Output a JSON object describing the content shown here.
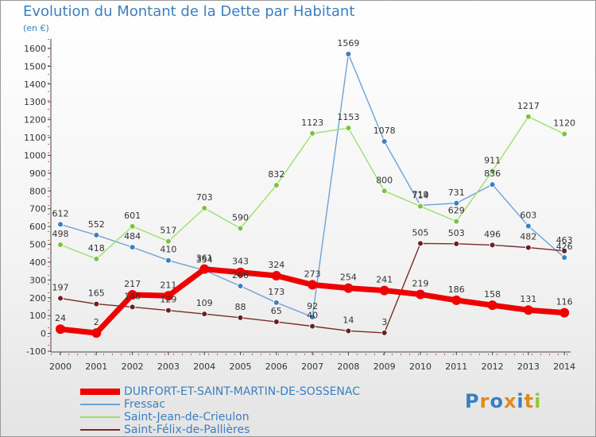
{
  "header": {
    "title": "Evolution du Montant de la Dette par Habitant",
    "unit": "(en €)"
  },
  "logo": {
    "text": "Proxiti",
    "letters": [
      "P",
      "r",
      "o",
      "x",
      "i",
      "t",
      "i"
    ],
    "colors": [
      "#3a7fc1",
      "#e08a1e",
      "#3a7fc1",
      "#e08a1e",
      "#3a7fc1",
      "#e08a1e",
      "#9ac23c"
    ]
  },
  "chart_data": {
    "type": "line",
    "x": [
      "2000",
      "2001",
      "2002",
      "2003",
      "2004",
      "2005",
      "2006",
      "2007",
      "2008",
      "2009",
      "2010",
      "2011",
      "2012",
      "2013",
      "2014"
    ],
    "ylim": [
      -100,
      1600
    ],
    "yticks": [
      -100,
      0,
      100,
      200,
      300,
      400,
      500,
      600,
      700,
      800,
      900,
      1000,
      1100,
      1200,
      1300,
      1400,
      1500,
      1600
    ],
    "grid": false,
    "legend_position": "bottom",
    "series": [
      {
        "name": "DURFORT-ET-SAINT-MARTIN-DE-SOSSENAC",
        "color": "#ee0000",
        "marker_color": "#ee0000",
        "width": 7,
        "radius": 6,
        "values": [
          24,
          2,
          217,
          211,
          361,
          343,
          324,
          273,
          254,
          241,
          219,
          186,
          158,
          131,
          116
        ]
      },
      {
        "name": "Fressac",
        "color": "#6fa2d6",
        "marker_color": "#3a7fc1",
        "width": 1.4,
        "radius": 3.4,
        "values": [
          612,
          552,
          484,
          410,
          354,
          266,
          173,
          92,
          1569,
          1078,
          719,
          731,
          836,
          603,
          426
        ]
      },
      {
        "name": "Saint-Jean-de-Crieulon",
        "color": "#9be06b",
        "marker_color": "#7cc242",
        "width": 1.4,
        "radius": 3.4,
        "values": [
          498,
          418,
          601,
          517,
          703,
          590,
          832,
          1123,
          1153,
          800,
          714,
          629,
          911,
          1217,
          1120
        ]
      },
      {
        "name": "Saint-Félix-de-Pallières",
        "color": "#7a2b2b",
        "marker_color": "#6b1f1f",
        "width": 1.4,
        "radius": 3.4,
        "values": [
          197,
          165,
          148,
          129,
          109,
          88,
          65,
          40,
          14,
          3,
          505,
          503,
          496,
          482,
          463
        ]
      }
    ]
  }
}
